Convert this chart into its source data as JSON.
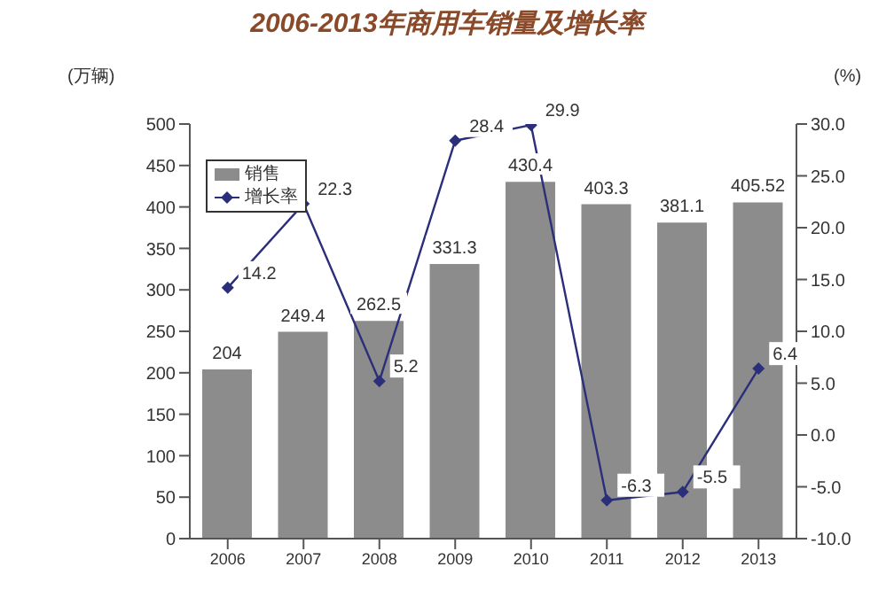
{
  "chart_data": {
    "type": "bar",
    "title": "2006-2013年商用车销量及增长率",
    "ylabel": "(万辆)",
    "y2label": "(%)",
    "categories": [
      "2006",
      "2007",
      "2008",
      "2009",
      "2010",
      "2011",
      "2012",
      "2013"
    ],
    "series": [
      {
        "name": "销售",
        "color": "#8c8c8c",
        "values": [
          204,
          249.4,
          262.5,
          331.3,
          430.4,
          403.3,
          381.1,
          405.52
        ]
      },
      {
        "name": "增长率",
        "type": "line",
        "axis": "y2",
        "color": "#2b2f7a",
        "values": [
          14.2,
          22.3,
          5.2,
          28.4,
          29.9,
          -6.3,
          -5.5,
          6.4
        ]
      }
    ],
    "ylim": [
      0,
      500
    ],
    "yticks": [
      0,
      50,
      100,
      150,
      200,
      250,
      300,
      350,
      400,
      450,
      500
    ],
    "y2lim": [
      -10,
      30
    ],
    "y2ticks": [
      {
        "value": -10,
        "label": "-10.0"
      },
      {
        "value": -5,
        "label": "-5.0"
      },
      {
        "value": 0,
        "label": "0.0"
      },
      {
        "value": 5,
        "label": "5.0"
      },
      {
        "value": 10,
        "label": "10.0"
      },
      {
        "value": 15,
        "label": "15.0"
      },
      {
        "value": 20,
        "label": "20.0"
      },
      {
        "value": 25,
        "label": "25.0"
      },
      {
        "value": 30,
        "label": "30.0"
      }
    ],
    "data_labels": true,
    "legend": "top left",
    "marker": "diamond",
    "grid": false
  }
}
